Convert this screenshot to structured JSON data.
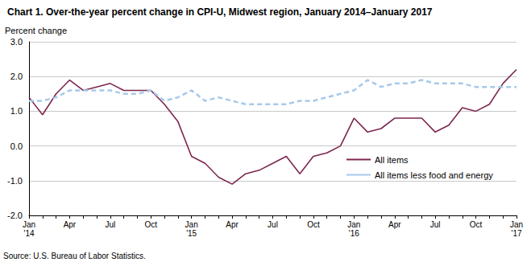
{
  "chart_data": {
    "type": "line",
    "title": "Chart 1. Over-the-year percent change in CPI-U, Midwest region, January 2014–January 2017",
    "y_label": "Percent change",
    "source": "Source: U.S. Bureau of Labor Statistics.",
    "categories": [
      "Jan\n'14",
      null,
      null,
      "Apr",
      null,
      null,
      "Jul",
      null,
      null,
      "Oct",
      null,
      null,
      "Jan\n'15",
      null,
      null,
      "Apr",
      null,
      null,
      "Jul",
      null,
      null,
      "Oct",
      null,
      null,
      "Jan\n'16",
      null,
      null,
      "Apr",
      null,
      null,
      "Jul",
      null,
      null,
      "Oct",
      null,
      null,
      "Jan\n'17"
    ],
    "series": [
      {
        "name": "All items",
        "color": "#7d2650",
        "line_style": "solid",
        "marker": "none",
        "values": [
          1.4,
          0.9,
          1.5,
          1.9,
          1.6,
          1.7,
          1.8,
          1.6,
          1.6,
          1.6,
          1.2,
          0.7,
          -0.3,
          -0.5,
          -0.9,
          -1.1,
          -0.8,
          -0.7,
          -0.5,
          -0.3,
          -0.8,
          -0.3,
          -0.2,
          0.0,
          0.8,
          0.4,
          0.5,
          0.8,
          0.8,
          0.8,
          0.4,
          0.6,
          1.1,
          1.0,
          1.2,
          1.8,
          2.2
        ]
      },
      {
        "name": "All items less food and energy",
        "color": "#a7c9ea",
        "line_style": "dashed",
        "marker": "none",
        "values": [
          1.3,
          1.3,
          1.4,
          1.6,
          1.6,
          1.6,
          1.6,
          1.5,
          1.5,
          1.6,
          1.3,
          1.4,
          1.6,
          1.3,
          1.4,
          1.3,
          1.2,
          1.2,
          1.2,
          1.2,
          1.3,
          1.3,
          1.4,
          1.5,
          1.6,
          1.9,
          1.7,
          1.8,
          1.8,
          1.9,
          1.8,
          1.8,
          1.8,
          1.7,
          1.7,
          1.7,
          1.7
        ]
      }
    ],
    "ylim": [
      -2,
      3
    ],
    "yticks": [
      {
        "value": -2,
        "label": "-2.0"
      },
      {
        "value": -1,
        "label": "-1.0"
      },
      {
        "value": 0,
        "label": "0.0"
      },
      {
        "value": 1,
        "label": "1.0"
      },
      {
        "value": 2,
        "label": "2.0"
      },
      {
        "value": 3,
        "label": "3.0"
      }
    ],
    "grid": true,
    "legend": "lower right"
  }
}
